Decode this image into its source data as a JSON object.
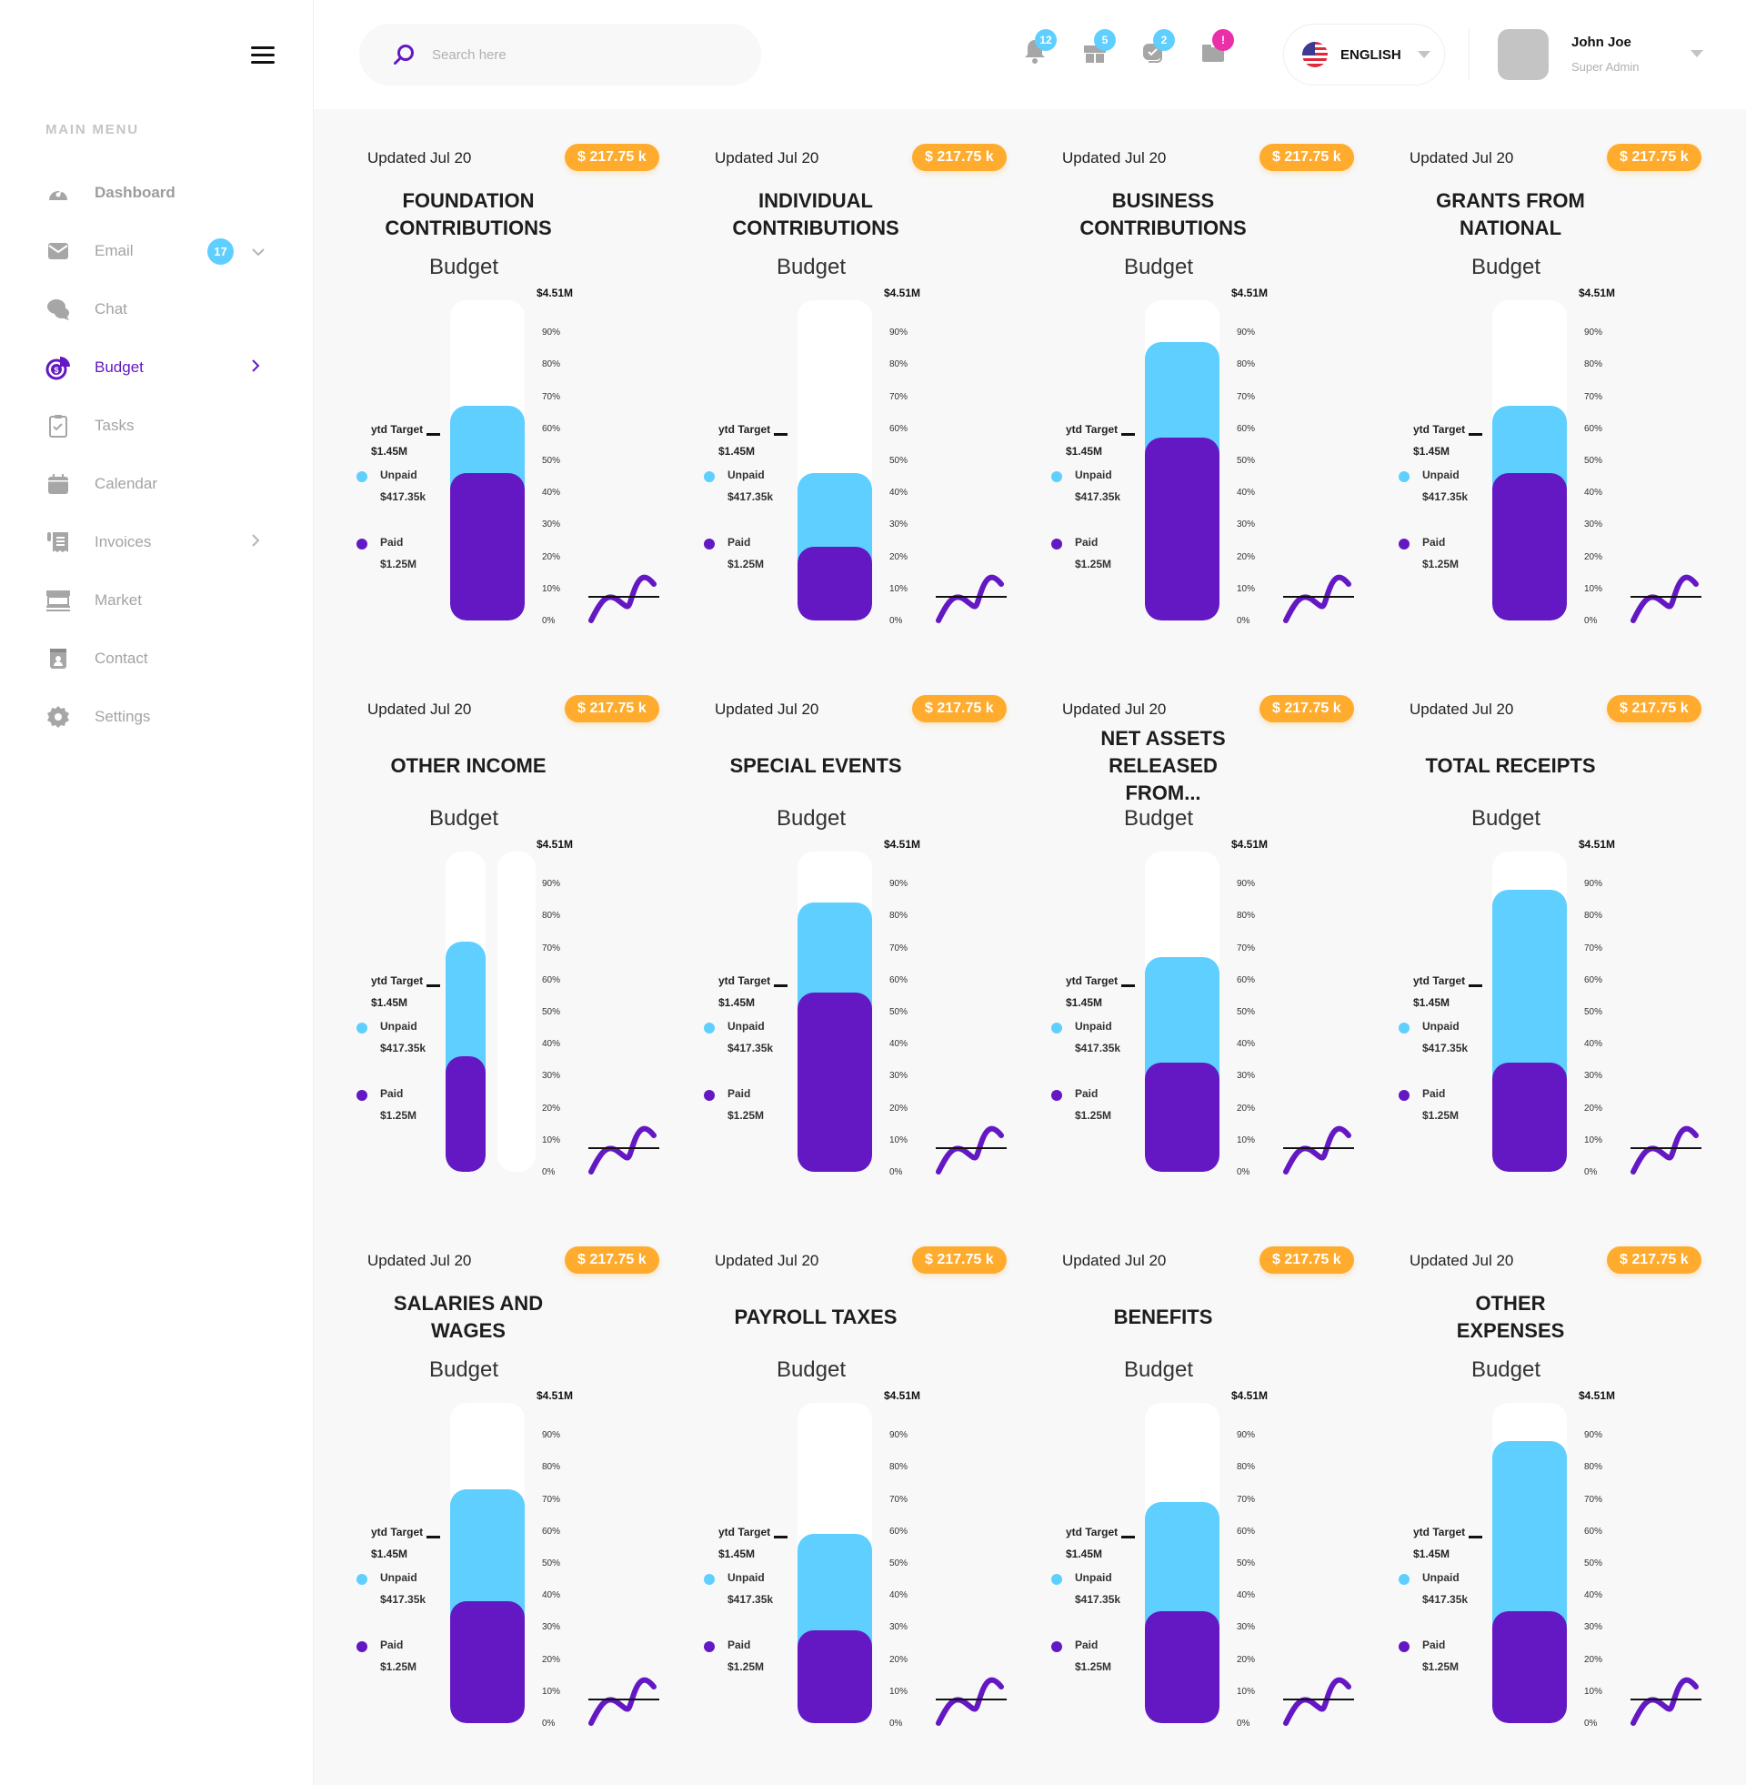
{
  "sidebar": {
    "menu_title": "MAIN MENU",
    "items": [
      {
        "label": "Dashboard",
        "icon": "dashboard-icon",
        "bold": true
      },
      {
        "label": "Email",
        "icon": "email-icon",
        "badge": "17",
        "chevron": "down"
      },
      {
        "label": "Chat",
        "icon": "chat-icon"
      },
      {
        "label": "Budget",
        "icon": "budget-icon",
        "active": true,
        "chevron": "right"
      },
      {
        "label": "Tasks",
        "icon": "tasks-icon"
      },
      {
        "label": "Calendar",
        "icon": "calendar-icon"
      },
      {
        "label": "Invoices",
        "icon": "invoices-icon",
        "chevron": "right"
      },
      {
        "label": "Market",
        "icon": "market-icon"
      },
      {
        "label": "Contact",
        "icon": "contact-icon"
      },
      {
        "label": "Settings",
        "icon": "settings-icon"
      }
    ]
  },
  "header": {
    "search": {
      "placeholder": "Search here",
      "value": ""
    },
    "notifications": [
      {
        "icon": "bell-icon",
        "count": "12",
        "color": "#5ecfff"
      },
      {
        "icon": "gift-icon",
        "count": "5",
        "color": "#5ecfff"
      },
      {
        "icon": "chat-check-icon",
        "count": "2",
        "color": "#5ecfff"
      },
      {
        "icon": "folder-icon",
        "count": "!",
        "color": "#ea2fa9"
      }
    ],
    "language": "ENGLISH",
    "user": {
      "name": "John Joe",
      "role": "Super Admin"
    }
  },
  "colors": {
    "accent": "#6418c3",
    "paid": "#6418c3",
    "unpaid": "#5ecfff",
    "badge": "#ffab2d"
  },
  "chart_data": [
    {
      "type": "bar",
      "title": "FOUNDATION CONTRIBUTIONS",
      "updated": "Updated Jul 20",
      "amount": "$ 217.75 k",
      "subtitle": "Budget",
      "max_label": "$4.51M",
      "ytd_label": "ytd Target",
      "ytd_value": "$1.45M",
      "legend": [
        {
          "name": "Unpaid",
          "value": "$417.35k"
        },
        {
          "name": "Paid",
          "value": "$1.25M"
        }
      ],
      "ticks": [
        "90%",
        "80%",
        "70%",
        "60%",
        "50%",
        "40%",
        "30%",
        "20%",
        "10%",
        "0%"
      ],
      "ylim": [
        0,
        100
      ],
      "unpaid_top_pct": 67,
      "paid_pct": 46
    },
    {
      "type": "bar",
      "title": "INDIVIDUAL CONTRIBUTIONS",
      "updated": "Updated Jul 20",
      "amount": "$ 217.75 k",
      "subtitle": "Budget",
      "max_label": "$4.51M",
      "ytd_label": "ytd Target",
      "ytd_value": "$1.45M",
      "legend": [
        {
          "name": "Unpaid",
          "value": "$417.35k"
        },
        {
          "name": "Paid",
          "value": "$1.25M"
        }
      ],
      "ticks": [
        "90%",
        "80%",
        "70%",
        "60%",
        "50%",
        "40%",
        "30%",
        "20%",
        "10%",
        "0%"
      ],
      "ylim": [
        0,
        100
      ],
      "unpaid_top_pct": 46,
      "paid_pct": 23
    },
    {
      "type": "bar",
      "title": "BUSINESS CONTRIBUTIONS",
      "updated": "Updated Jul 20",
      "amount": "$ 217.75 k",
      "subtitle": "Budget",
      "max_label": "$4.51M",
      "ytd_label": "ytd Target",
      "ytd_value": "$1.45M",
      "legend": [
        {
          "name": "Unpaid",
          "value": "$417.35k"
        },
        {
          "name": "Paid",
          "value": "$1.25M"
        }
      ],
      "ticks": [
        "90%",
        "80%",
        "70%",
        "60%",
        "50%",
        "40%",
        "30%",
        "20%",
        "10%",
        "0%"
      ],
      "ylim": [
        0,
        100
      ],
      "unpaid_top_pct": 87,
      "paid_pct": 57
    },
    {
      "type": "bar",
      "title": "GRANTS FROM NATIONAL",
      "updated": "Updated Jul 20",
      "amount": "$ 217.75 k",
      "subtitle": "Budget",
      "max_label": "$4.51M",
      "ytd_label": "ytd Target",
      "ytd_value": "$1.45M",
      "legend": [
        {
          "name": "Unpaid",
          "value": "$417.35k"
        },
        {
          "name": "Paid",
          "value": "$1.25M"
        }
      ],
      "ticks": [
        "90%",
        "80%",
        "70%",
        "60%",
        "50%",
        "40%",
        "30%",
        "20%",
        "10%",
        "0%"
      ],
      "ylim": [
        0,
        100
      ],
      "unpaid_top_pct": 67,
      "paid_pct": 46
    },
    {
      "type": "bar",
      "title": "OTHER INCOME",
      "updated": "Updated Jul 20",
      "amount": "$ 217.75 k",
      "subtitle": "Budget",
      "max_label": "$4.51M",
      "ytd_label": "ytd Target",
      "ytd_value": "$1.45M",
      "legend": [
        {
          "name": "Unpaid",
          "value": "$417.35k"
        },
        {
          "name": "Paid",
          "value": "$1.25M"
        }
      ],
      "ticks": [
        "90%",
        "80%",
        "70%",
        "60%",
        "50%",
        "40%",
        "30%",
        "20%",
        "10%",
        "0%"
      ],
      "ylim": [
        0,
        100
      ],
      "unpaid_top_pct": 72,
      "paid_pct": 36,
      "narrow": true
    },
    {
      "type": "bar",
      "title": "SPECIAL EVENTS",
      "updated": "Updated Jul 20",
      "amount": "$ 217.75 k",
      "subtitle": "Budget",
      "max_label": "$4.51M",
      "ytd_label": "ytd Target",
      "ytd_value": "$1.45M",
      "legend": [
        {
          "name": "Unpaid",
          "value": "$417.35k"
        },
        {
          "name": "Paid",
          "value": "$1.25M"
        }
      ],
      "ticks": [
        "90%",
        "80%",
        "70%",
        "60%",
        "50%",
        "40%",
        "30%",
        "20%",
        "10%",
        "0%"
      ],
      "ylim": [
        0,
        100
      ],
      "unpaid_top_pct": 84,
      "paid_pct": 56
    },
    {
      "type": "bar",
      "title": "NET ASSETS RELEASED FROM...",
      "updated": "Updated Jul 20",
      "amount": "$ 217.75 k",
      "subtitle": "Budget",
      "max_label": "$4.51M",
      "ytd_label": "ytd Target",
      "ytd_value": "$1.45M",
      "legend": [
        {
          "name": "Unpaid",
          "value": "$417.35k"
        },
        {
          "name": "Paid",
          "value": "$1.25M"
        }
      ],
      "ticks": [
        "90%",
        "80%",
        "70%",
        "60%",
        "50%",
        "40%",
        "30%",
        "20%",
        "10%",
        "0%"
      ],
      "ylim": [
        0,
        100
      ],
      "unpaid_top_pct": 67,
      "paid_pct": 34
    },
    {
      "type": "bar",
      "title": "TOTAL RECEIPTS",
      "updated": "Updated Jul 20",
      "amount": "$ 217.75 k",
      "subtitle": "Budget",
      "max_label": "$4.51M",
      "ytd_label": "ytd Target",
      "ytd_value": "$1.45M",
      "legend": [
        {
          "name": "Unpaid",
          "value": "$417.35k"
        },
        {
          "name": "Paid",
          "value": "$1.25M"
        }
      ],
      "ticks": [
        "90%",
        "80%",
        "70%",
        "60%",
        "50%",
        "40%",
        "30%",
        "20%",
        "10%",
        "0%"
      ],
      "ylim": [
        0,
        100
      ],
      "unpaid_top_pct": 88,
      "paid_pct": 34
    },
    {
      "type": "bar",
      "title": "SALARIES AND WAGES",
      "updated": "Updated Jul 20",
      "amount": "$ 217.75 k",
      "subtitle": "Budget",
      "max_label": "$4.51M",
      "ytd_label": "ytd Target",
      "ytd_value": "$1.45M",
      "legend": [
        {
          "name": "Unpaid",
          "value": "$417.35k"
        },
        {
          "name": "Paid",
          "value": "$1.25M"
        }
      ],
      "ticks": [
        "90%",
        "80%",
        "70%",
        "60%",
        "50%",
        "40%",
        "30%",
        "20%",
        "10%",
        "0%"
      ],
      "ylim": [
        0,
        100
      ],
      "unpaid_top_pct": 73,
      "paid_pct": 38
    },
    {
      "type": "bar",
      "title": "PAYROLL TAXES",
      "updated": "Updated Jul 20",
      "amount": "$ 217.75 k",
      "subtitle": "Budget",
      "max_label": "$4.51M",
      "ytd_label": "ytd Target",
      "ytd_value": "$1.45M",
      "legend": [
        {
          "name": "Unpaid",
          "value": "$417.35k"
        },
        {
          "name": "Paid",
          "value": "$1.25M"
        }
      ],
      "ticks": [
        "90%",
        "80%",
        "70%",
        "60%",
        "50%",
        "40%",
        "30%",
        "20%",
        "10%",
        "0%"
      ],
      "ylim": [
        0,
        100
      ],
      "unpaid_top_pct": 59,
      "paid_pct": 29
    },
    {
      "type": "bar",
      "title": "BENEFITS",
      "updated": "Updated Jul 20",
      "amount": "$ 217.75 k",
      "subtitle": "Budget",
      "max_label": "$4.51M",
      "ytd_label": "ytd Target",
      "ytd_value": "$1.45M",
      "legend": [
        {
          "name": "Unpaid",
          "value": "$417.35k"
        },
        {
          "name": "Paid",
          "value": "$1.25M"
        }
      ],
      "ticks": [
        "90%",
        "80%",
        "70%",
        "60%",
        "50%",
        "40%",
        "30%",
        "20%",
        "10%",
        "0%"
      ],
      "ylim": [
        0,
        100
      ],
      "unpaid_top_pct": 69,
      "paid_pct": 35
    },
    {
      "type": "bar",
      "title": "OTHER EXPENSES",
      "updated": "Updated Jul 20",
      "amount": "$ 217.75 k",
      "subtitle": "Budget",
      "max_label": "$4.51M",
      "ytd_label": "ytd Target",
      "ytd_value": "$1.45M",
      "legend": [
        {
          "name": "Unpaid",
          "value": "$417.35k"
        },
        {
          "name": "Paid",
          "value": "$1.25M"
        }
      ],
      "ticks": [
        "90%",
        "80%",
        "70%",
        "60%",
        "50%",
        "40%",
        "30%",
        "20%",
        "10%",
        "0%"
      ],
      "ylim": [
        0,
        100
      ],
      "unpaid_top_pct": 88,
      "paid_pct": 35
    }
  ]
}
